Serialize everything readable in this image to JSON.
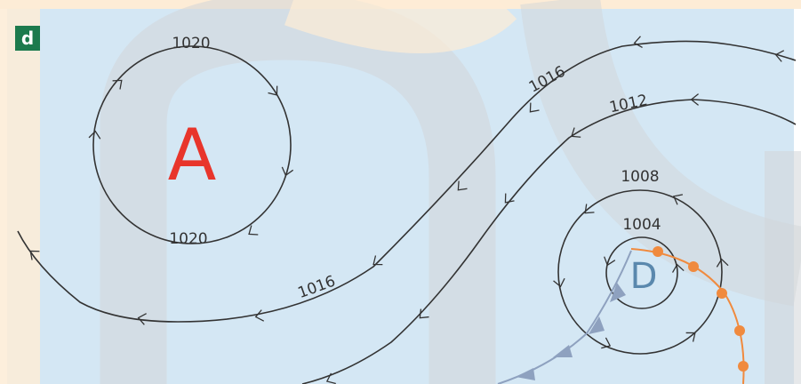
{
  "panel": {
    "label": "d"
  },
  "high": {
    "symbol": "A"
  },
  "low": {
    "symbol": "D"
  },
  "isobars": {
    "high_top": "1020",
    "high_bottom": "1020",
    "upper_1016": "1016",
    "lower_1016": "1016",
    "line_1012": "1012",
    "ring_1008": "1008",
    "ring_1004": "1004"
  },
  "colors": {
    "sky": "#d4e7f4",
    "watermark_orange": "#fdecd6",
    "watermark_gray": "#d2d6d8",
    "isobar": "#333333",
    "high": "#e8352b",
    "low": "#5a88ad",
    "warm_front": "#f08a3e",
    "cold_front": "#8ea1bf",
    "badge": "#1c7a4d"
  }
}
